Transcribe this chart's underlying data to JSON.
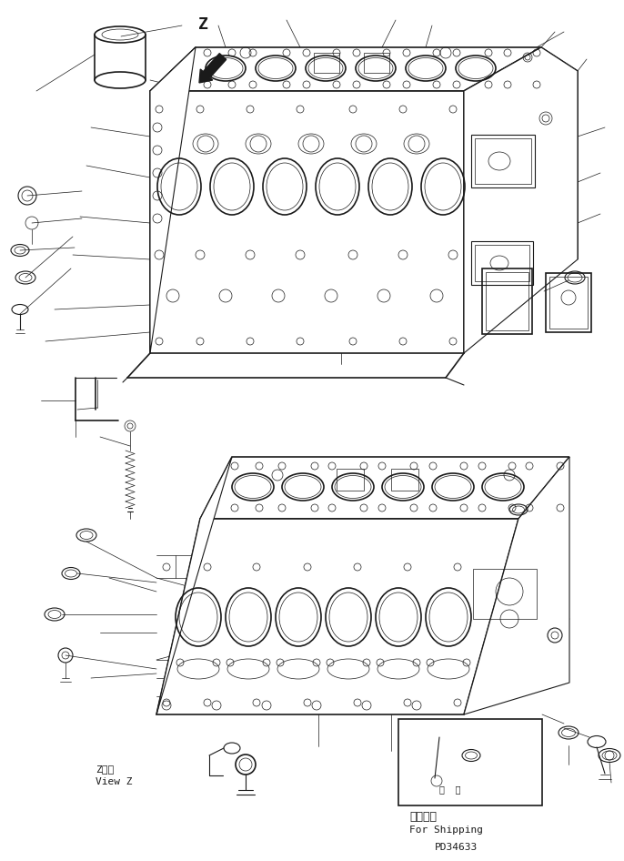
{
  "background_color": "#ffffff",
  "line_color": "#1a1a1a",
  "fig_width": 6.86,
  "fig_height": 9.46,
  "dpi": 100,
  "z_label": "Z",
  "view_z_line1": "Z　視",
  "view_z_line2": "View Z",
  "for_shipping_jp": "運携部品",
  "for_shipping_en": "For Shipping",
  "part_number": "PD34633"
}
